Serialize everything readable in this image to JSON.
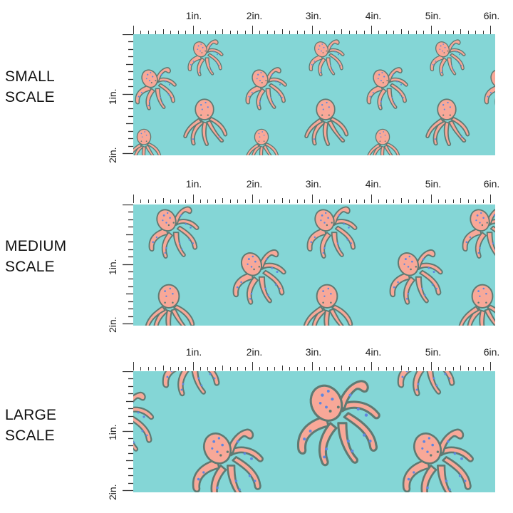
{
  "colors": {
    "fabric_background": "#84d6d6",
    "octopus_body": "#f8a898",
    "octopus_outline": "#5f7a73",
    "octopus_spots": "#5f86e0",
    "ruler": "#333333",
    "text": "#111111"
  },
  "ruler": {
    "horizontal_labels": [
      "1in.",
      "2in.",
      "3in.",
      "4in.",
      "5in.",
      "6in."
    ],
    "vertical_labels": [
      "1in.",
      "2in."
    ]
  },
  "sections": [
    {
      "label_line1": "SMALL",
      "label_line2": "SCALE",
      "pattern": "octopus-small"
    },
    {
      "label_line1": "MEDIUM",
      "label_line2": "SCALE",
      "pattern": "octopus-medium"
    },
    {
      "label_line1": "LARGE",
      "label_line2": "SCALE",
      "pattern": "octopus-large"
    }
  ]
}
